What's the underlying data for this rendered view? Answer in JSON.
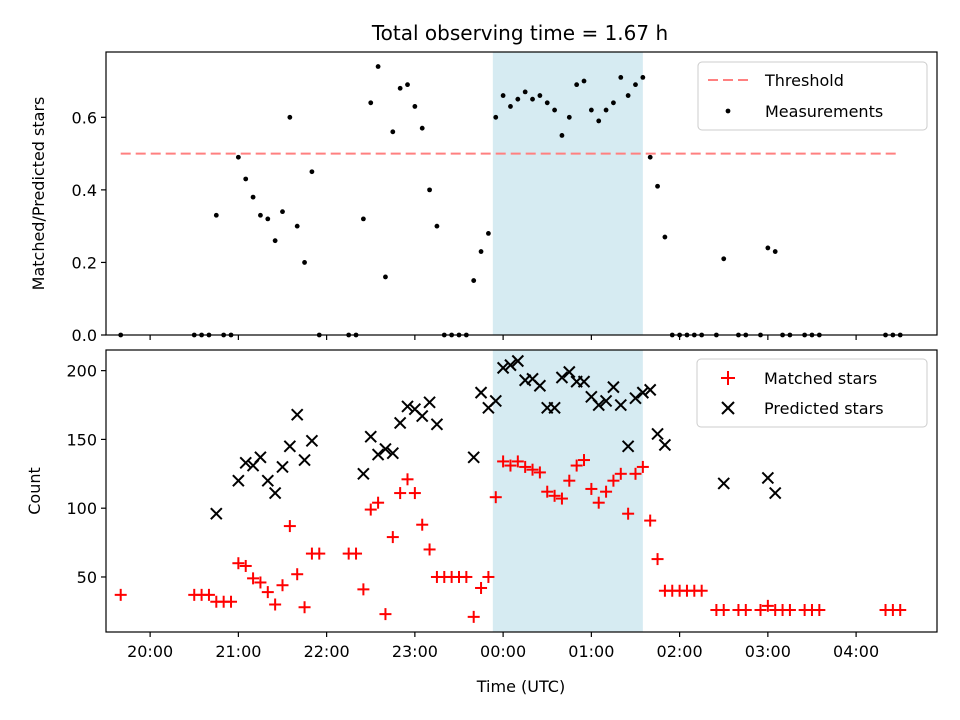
{
  "chart_data": [
    {
      "type": "scatter",
      "title": "Total observing time = 1.67 h",
      "xlabel": "",
      "ylabel": "Matched/Predicted stars",
      "xlim": [
        "19:30",
        "04:55"
      ],
      "ylim": [
        0,
        0.78
      ],
      "yticks": [
        0.0,
        0.2,
        0.4,
        0.6
      ],
      "grid": false,
      "legend_position": "top-right",
      "highlight_span": [
        "23:53",
        "01:35"
      ],
      "threshold": {
        "name": "Threshold",
        "value": 0.5,
        "x_range": [
          "19:40",
          "04:28"
        ],
        "color": "#ff8080",
        "style": "dashed"
      },
      "series": [
        {
          "name": "Measurements",
          "marker": "dot",
          "color": "#000000",
          "points": [
            [
              "19:40",
              0.0
            ],
            [
              "20:30",
              0.0
            ],
            [
              "20:35",
              0.0
            ],
            [
              "20:40",
              0.0
            ],
            [
              "20:45",
              0.33
            ],
            [
              "20:50",
              0.0
            ],
            [
              "20:55",
              0.0
            ],
            [
              "21:00",
              0.49
            ],
            [
              "21:05",
              0.43
            ],
            [
              "21:10",
              0.38
            ],
            [
              "21:15",
              0.33
            ],
            [
              "21:20",
              0.32
            ],
            [
              "21:25",
              0.26
            ],
            [
              "21:30",
              0.34
            ],
            [
              "21:35",
              0.6
            ],
            [
              "21:40",
              0.3
            ],
            [
              "21:45",
              0.2
            ],
            [
              "21:50",
              0.45
            ],
            [
              "21:55",
              0.0
            ],
            [
              "22:15",
              0.0
            ],
            [
              "22:20",
              0.0
            ],
            [
              "22:25",
              0.32
            ],
            [
              "22:30",
              0.64
            ],
            [
              "22:35",
              0.74
            ],
            [
              "22:40",
              0.16
            ],
            [
              "22:45",
              0.56
            ],
            [
              "22:50",
              0.68
            ],
            [
              "22:55",
              0.69
            ],
            [
              "23:00",
              0.63
            ],
            [
              "23:05",
              0.57
            ],
            [
              "23:10",
              0.4
            ],
            [
              "23:15",
              0.3
            ],
            [
              "23:20",
              0.0
            ],
            [
              "23:25",
              0.0
            ],
            [
              "23:30",
              0.0
            ],
            [
              "23:35",
              0.0
            ],
            [
              "23:40",
              0.15
            ],
            [
              "23:45",
              0.23
            ],
            [
              "23:50",
              0.28
            ],
            [
              "23:55",
              0.6
            ],
            [
              "00:00",
              0.66
            ],
            [
              "00:05",
              0.63
            ],
            [
              "00:10",
              0.65
            ],
            [
              "00:15",
              0.67
            ],
            [
              "00:20",
              0.65
            ],
            [
              "00:25",
              0.66
            ],
            [
              "00:30",
              0.64
            ],
            [
              "00:35",
              0.62
            ],
            [
              "00:40",
              0.55
            ],
            [
              "00:45",
              0.6
            ],
            [
              "00:50",
              0.69
            ],
            [
              "00:55",
              0.7
            ],
            [
              "01:00",
              0.62
            ],
            [
              "01:05",
              0.59
            ],
            [
              "01:10",
              0.62
            ],
            [
              "01:15",
              0.64
            ],
            [
              "01:20",
              0.71
            ],
            [
              "01:25",
              0.66
            ],
            [
              "01:30",
              0.69
            ],
            [
              "01:35",
              0.71
            ],
            [
              "01:40",
              0.49
            ],
            [
              "01:45",
              0.41
            ],
            [
              "01:50",
              0.27
            ],
            [
              "01:55",
              0.0
            ],
            [
              "02:00",
              0.0
            ],
            [
              "02:05",
              0.0
            ],
            [
              "02:10",
              0.0
            ],
            [
              "02:15",
              0.0
            ],
            [
              "02:25",
              0.0
            ],
            [
              "02:30",
              0.21
            ],
            [
              "02:40",
              0.0
            ],
            [
              "02:45",
              0.0
            ],
            [
              "02:55",
              0.0
            ],
            [
              "03:00",
              0.24
            ],
            [
              "03:05",
              0.23
            ],
            [
              "03:10",
              0.0
            ],
            [
              "03:15",
              0.0
            ],
            [
              "03:25",
              0.0
            ],
            [
              "03:30",
              0.0
            ],
            [
              "03:35",
              0.0
            ],
            [
              "04:20",
              0.0
            ],
            [
              "04:25",
              0.0
            ],
            [
              "04:30",
              0.0
            ]
          ]
        }
      ]
    },
    {
      "type": "scatter",
      "title": "",
      "xlabel": "Time (UTC)",
      "ylabel": "Count",
      "xlim": [
        "19:30",
        "04:55"
      ],
      "ylim": [
        10,
        215
      ],
      "yticks": [
        50,
        100,
        150,
        200
      ],
      "xticks": [
        "20:00",
        "21:00",
        "22:00",
        "23:00",
        "00:00",
        "01:00",
        "02:00",
        "03:00",
        "04:00"
      ],
      "grid": false,
      "legend_position": "top-right",
      "highlight_span": [
        "23:53",
        "01:35"
      ],
      "series": [
        {
          "name": "Matched stars",
          "marker": "plus",
          "color": "#ff0000",
          "points": [
            [
              "19:40",
              37
            ],
            [
              "20:30",
              37
            ],
            [
              "20:35",
              37
            ],
            [
              "20:40",
              37
            ],
            [
              "20:45",
              32
            ],
            [
              "20:50",
              32
            ],
            [
              "20:55",
              32
            ],
            [
              "21:00",
              60
            ],
            [
              "21:05",
              58
            ],
            [
              "21:10",
              49
            ],
            [
              "21:15",
              46
            ],
            [
              "21:20",
              39
            ],
            [
              "21:25",
              30
            ],
            [
              "21:30",
              44
            ],
            [
              "21:35",
              87
            ],
            [
              "21:40",
              52
            ],
            [
              "21:45",
              28
            ],
            [
              "21:50",
              67
            ],
            [
              "21:55",
              67
            ],
            [
              "22:15",
              67
            ],
            [
              "22:20",
              67
            ],
            [
              "22:25",
              41
            ],
            [
              "22:30",
              99
            ],
            [
              "22:35",
              104
            ],
            [
              "22:40",
              23
            ],
            [
              "22:45",
              79
            ],
            [
              "22:50",
              111
            ],
            [
              "22:55",
              121
            ],
            [
              "23:00",
              111
            ],
            [
              "23:05",
              88
            ],
            [
              "23:10",
              70
            ],
            [
              "23:15",
              50
            ],
            [
              "23:20",
              50
            ],
            [
              "23:25",
              50
            ],
            [
              "23:30",
              50
            ],
            [
              "23:35",
              50
            ],
            [
              "23:40",
              21
            ],
            [
              "23:45",
              42
            ],
            [
              "23:50",
              50
            ],
            [
              "23:55",
              108
            ],
            [
              "00:00",
              134
            ],
            [
              "00:05",
              131
            ],
            [
              "00:10",
              134
            ],
            [
              "00:15",
              130
            ],
            [
              "00:20",
              128
            ],
            [
              "00:25",
              126
            ],
            [
              "00:30",
              112
            ],
            [
              "00:35",
              109
            ],
            [
              "00:40",
              107
            ],
            [
              "00:45",
              120
            ],
            [
              "00:50",
              131
            ],
            [
              "00:55",
              135
            ],
            [
              "01:00",
              114
            ],
            [
              "01:05",
              104
            ],
            [
              "01:10",
              112
            ],
            [
              "01:15",
              120
            ],
            [
              "01:20",
              125
            ],
            [
              "01:25",
              96
            ],
            [
              "01:30",
              125
            ],
            [
              "01:35",
              130
            ],
            [
              "01:40",
              91
            ],
            [
              "01:45",
              63
            ],
            [
              "01:50",
              40
            ],
            [
              "01:55",
              40
            ],
            [
              "02:00",
              40
            ],
            [
              "02:05",
              40
            ],
            [
              "02:10",
              40
            ],
            [
              "02:15",
              40
            ],
            [
              "02:25",
              26
            ],
            [
              "02:30",
              26
            ],
            [
              "02:40",
              26
            ],
            [
              "02:45",
              26
            ],
            [
              "02:55",
              26
            ],
            [
              "03:00",
              29
            ],
            [
              "03:05",
              26
            ],
            [
              "03:10",
              26
            ],
            [
              "03:15",
              26
            ],
            [
              "03:25",
              26
            ],
            [
              "03:30",
              26
            ],
            [
              "03:35",
              26
            ],
            [
              "04:20",
              26
            ],
            [
              "04:25",
              26
            ],
            [
              "04:30",
              26
            ]
          ]
        },
        {
          "name": "Predicted stars",
          "marker": "x",
          "color": "#000000",
          "points": [
            [
              "20:45",
              96
            ],
            [
              "21:00",
              120
            ],
            [
              "21:05",
              133
            ],
            [
              "21:10",
              131
            ],
            [
              "21:15",
              137
            ],
            [
              "21:20",
              120
            ],
            [
              "21:25",
              111
            ],
            [
              "21:30",
              130
            ],
            [
              "21:35",
              145
            ],
            [
              "21:40",
              168
            ],
            [
              "21:45",
              135
            ],
            [
              "21:50",
              149
            ],
            [
              "22:25",
              125
            ],
            [
              "22:30",
              152
            ],
            [
              "22:35",
              139
            ],
            [
              "22:40",
              143
            ],
            [
              "22:45",
              140
            ],
            [
              "22:50",
              162
            ],
            [
              "22:55",
              174
            ],
            [
              "23:00",
              172
            ],
            [
              "23:05",
              167
            ],
            [
              "23:10",
              177
            ],
            [
              "23:15",
              161
            ],
            [
              "23:40",
              137
            ],
            [
              "23:45",
              184
            ],
            [
              "23:50",
              173
            ],
            [
              "23:55",
              178
            ],
            [
              "00:00",
              202
            ],
            [
              "00:05",
              204
            ],
            [
              "00:10",
              207
            ],
            [
              "00:15",
              193
            ],
            [
              "00:20",
              194
            ],
            [
              "00:25",
              189
            ],
            [
              "00:30",
              173
            ],
            [
              "00:35",
              173
            ],
            [
              "00:40",
              195
            ],
            [
              "00:45",
              199
            ],
            [
              "00:50",
              192
            ],
            [
              "00:55",
              192
            ],
            [
              "01:00",
              181
            ],
            [
              "01:05",
              175
            ],
            [
              "01:10",
              178
            ],
            [
              "01:15",
              188
            ],
            [
              "01:20",
              175
            ],
            [
              "01:25",
              145
            ],
            [
              "01:30",
              180
            ],
            [
              "01:35",
              184
            ],
            [
              "01:40",
              186
            ],
            [
              "01:45",
              154
            ],
            [
              "01:50",
              146
            ],
            [
              "02:30",
              118
            ],
            [
              "03:00",
              122
            ],
            [
              "03:05",
              111
            ]
          ]
        }
      ]
    }
  ]
}
